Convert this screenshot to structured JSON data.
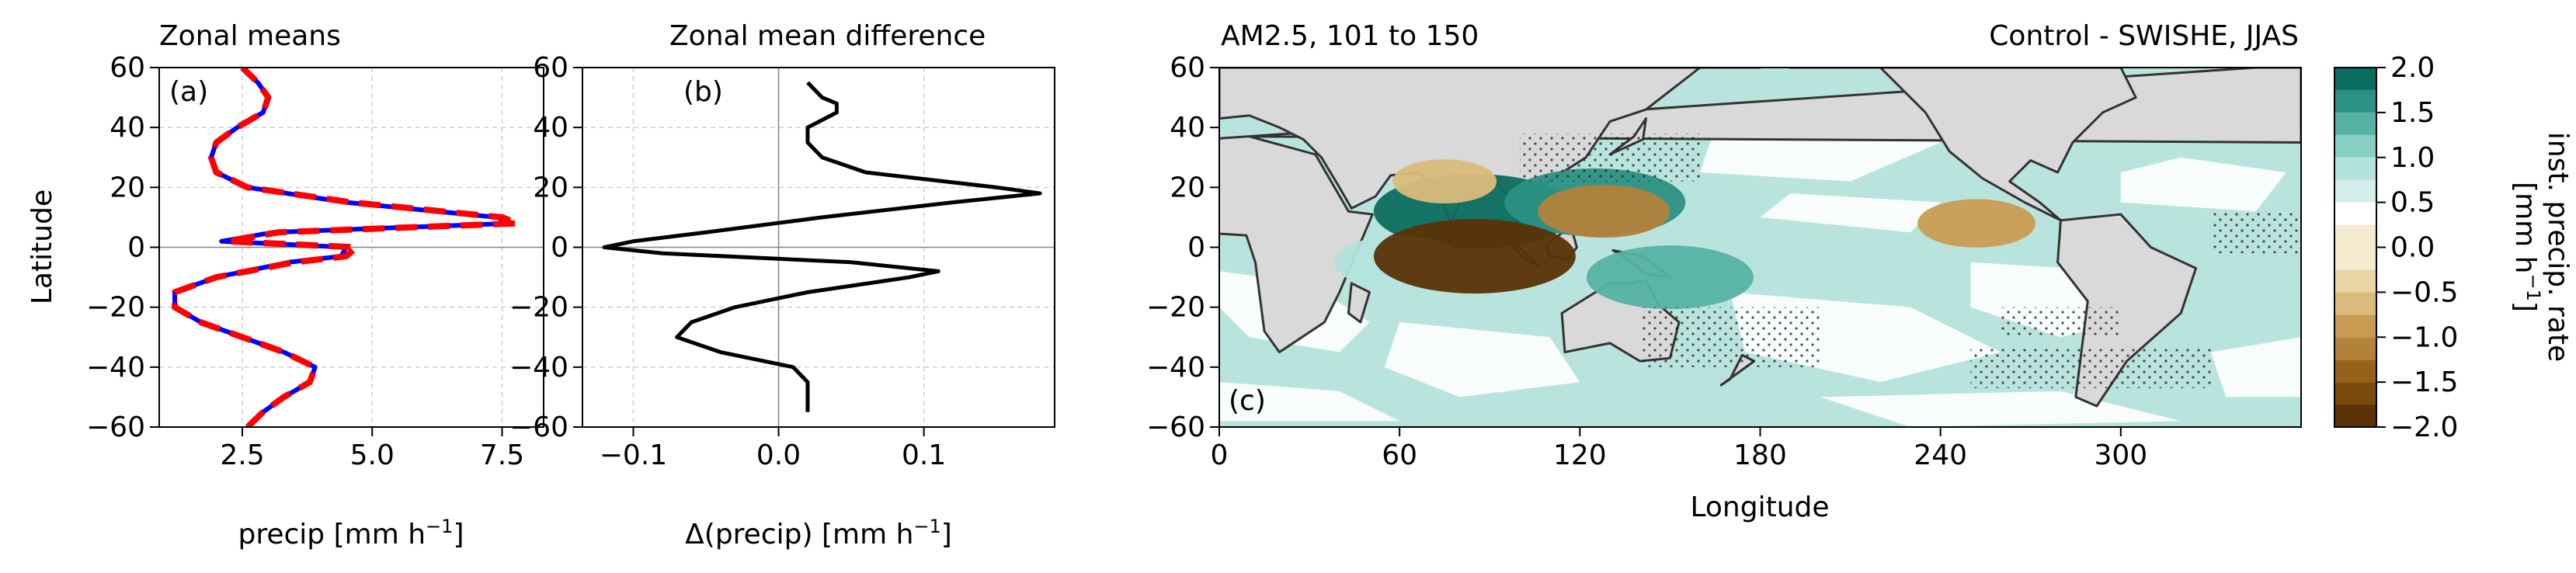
{
  "chart_data": [
    {
      "type": "line",
      "panel_label": "(a)",
      "title": "Zonal means",
      "xlabel": "precip [mm h",
      "xlabel_sup": "−1",
      "xlabel_tail": "]",
      "ylabel": "Latitude",
      "xlim": [
        0.9,
        8.3
      ],
      "ylim": [
        -60,
        60
      ],
      "xticks": [
        2.5,
        5.0,
        7.5
      ],
      "xtick_labels": [
        "2.5",
        "5.0",
        "7.5"
      ],
      "yticks": [
        -60,
        -40,
        -20,
        0,
        20,
        40,
        60
      ],
      "ytick_labels": [
        "−60",
        "−40",
        "−20",
        "0",
        "20",
        "40",
        "60"
      ],
      "grid": true,
      "series": [
        {
          "color": "#ff0000",
          "style": "dashed",
          "lat": [
            -60,
            -55,
            -50,
            -45,
            -40,
            -35,
            -30,
            -25,
            -20,
            -15,
            -10,
            -5,
            -3,
            0,
            2,
            5,
            8,
            10,
            15,
            20,
            25,
            30,
            35,
            40,
            45,
            50,
            55,
            60
          ],
          "values": [
            2.6,
            2.9,
            3.3,
            3.8,
            3.9,
            3.3,
            2.5,
            1.7,
            1.2,
            1.2,
            2.0,
            3.5,
            4.5,
            4.7,
            2.2,
            3.2,
            7.8,
            7.5,
            4.6,
            2.6,
            2.0,
            1.9,
            2.0,
            2.4,
            2.9,
            3.0,
            2.8,
            2.5
          ]
        },
        {
          "color": "#0000ff",
          "style": "solid",
          "lat": [
            -60,
            -55,
            -50,
            -45,
            -40,
            -35,
            -30,
            -25,
            -20,
            -15,
            -10,
            -5,
            -3,
            0,
            2,
            5,
            8,
            10,
            15,
            20,
            25,
            30,
            35,
            40,
            45,
            50,
            55,
            60
          ],
          "values": [
            2.6,
            2.9,
            3.3,
            3.8,
            3.9,
            3.3,
            2.5,
            1.7,
            1.2,
            1.2,
            2.0,
            3.4,
            4.4,
            4.5,
            2.1,
            3.1,
            7.7,
            7.4,
            4.5,
            2.6,
            2.0,
            1.9,
            2.0,
            2.4,
            2.9,
            3.0,
            2.8,
            2.5
          ]
        }
      ]
    },
    {
      "type": "line",
      "panel_label": "(b)",
      "title": "Zonal mean difference",
      "xlabel": "Δ(precip) [mm h",
      "xlabel_sup": "−1",
      "xlabel_tail": "]",
      "ylabel": "",
      "xlim": [
        -0.135,
        0.19
      ],
      "ylim": [
        -60,
        60
      ],
      "xticks": [
        -0.1,
        0.0,
        0.1
      ],
      "xtick_labels": [
        "−0.1",
        "0.0",
        "0.1"
      ],
      "yticks": [
        -60,
        -40,
        -20,
        0,
        20,
        40,
        60
      ],
      "ytick_labels": [
        "−60",
        "−40",
        "−20",
        "0",
        "20",
        "40",
        "60"
      ],
      "grid": true,
      "series": [
        {
          "color": "#000000",
          "style": "solid",
          "lat": [
            -55,
            -50,
            -45,
            -40,
            -35,
            -30,
            -25,
            -20,
            -15,
            -10,
            -8,
            -5,
            -2,
            0,
            2,
            5,
            10,
            15,
            18,
            20,
            25,
            30,
            35,
            40,
            45,
            48,
            50,
            55
          ],
          "values": [
            0.02,
            0.02,
            0.02,
            0.01,
            -0.04,
            -0.07,
            -0.06,
            -0.03,
            0.02,
            0.09,
            0.11,
            0.05,
            -0.08,
            -0.12,
            -0.1,
            -0.05,
            0.03,
            0.12,
            0.18,
            0.15,
            0.06,
            0.03,
            0.02,
            0.02,
            0.04,
            0.04,
            0.03,
            0.02
          ]
        }
      ]
    },
    {
      "type": "heatmap",
      "panel_label": "(c)",
      "title_left": "AM2.5, 101 to 150",
      "title_right": "Control - SWISHE, JJAS",
      "xlabel": "Longitude",
      "ylabel": "",
      "xlim": [
        0,
        360
      ],
      "ylim": [
        -60,
        60
      ],
      "xticks": [
        0,
        60,
        120,
        180,
        240,
        300
      ],
      "xtick_labels": [
        "0",
        "60",
        "120",
        "180",
        "240",
        "300"
      ],
      "yticks": [
        -60,
        -40,
        -20,
        0,
        20,
        40,
        60
      ],
      "ytick_labels": [
        "−60",
        "−40",
        "−20",
        "0",
        "20",
        "40",
        "60"
      ],
      "colorbar": {
        "label": "inst. precip. rate",
        "label2": "[mm h",
        "label2_sup": "−1",
        "label2_tail": "]",
        "levels": [
          -2.0,
          -1.75,
          -1.5,
          -1.25,
          -1.0,
          -0.75,
          -0.5,
          -0.25,
          0.25,
          0.5,
          0.75,
          1.0,
          1.25,
          1.5,
          1.75,
          2.0
        ],
        "tick_labels": [
          "−2.0",
          "−1.5",
          "−1.0",
          "−0.5",
          "0.0",
          "0.5",
          "1.0",
          "1.5",
          "2.0"
        ],
        "tick_values": [
          -2.0,
          -1.5,
          -1.0,
          -0.5,
          0.0,
          0.5,
          1.0,
          1.5,
          2.0
        ],
        "colors": [
          "#5a3206",
          "#7a4a0c",
          "#98611a",
          "#b3823a",
          "#c99b52",
          "#dbbb7a",
          "#ead5a4",
          "#f5ebcf",
          "#ffffff",
          "#d3eeea",
          "#b4e3dc",
          "#86cfc3",
          "#55b2a4",
          "#2b9183",
          "#0b6d5e",
          "#003f31"
        ]
      },
      "features": {
        "land_color": "#d9d9d9",
        "coast_color": "#333333",
        "positive_regions": [
          {
            "lon": 85,
            "lat": 12,
            "value": 2.0
          },
          {
            "lon": 125,
            "lat": 15,
            "value": 1.7
          },
          {
            "lon": 150,
            "lat": -10,
            "value": 1.5
          },
          {
            "lon": 60,
            "lat": -5,
            "value": 1.0
          }
        ],
        "negative_regions": [
          {
            "lon": 85,
            "lat": -3,
            "value": -2.0
          },
          {
            "lon": 128,
            "lat": 12,
            "value": -1.0
          },
          {
            "lon": 252,
            "lat": 8,
            "value": -0.8
          },
          {
            "lon": 75,
            "lat": 22,
            "value": -0.6
          }
        ]
      }
    }
  ]
}
